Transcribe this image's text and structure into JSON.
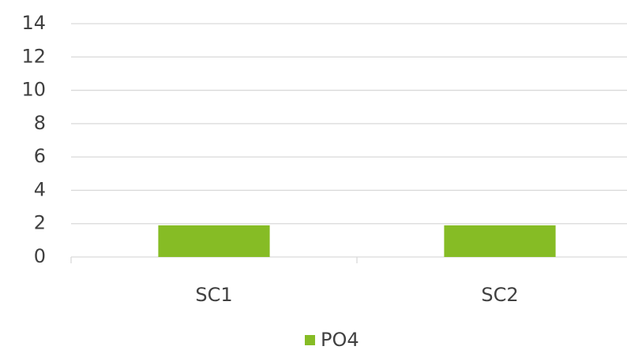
{
  "chart_data": {
    "type": "bar",
    "categories": [
      "SC1",
      "SC2"
    ],
    "series": [
      {
        "name": "PO4",
        "color": "#86bc25",
        "values": [
          1.9,
          1.9
        ]
      }
    ],
    "ylim": [
      0,
      14
    ],
    "yticks": [
      0,
      2,
      4,
      6,
      8,
      10,
      12,
      14
    ],
    "grid": true,
    "legend": "bottom"
  }
}
